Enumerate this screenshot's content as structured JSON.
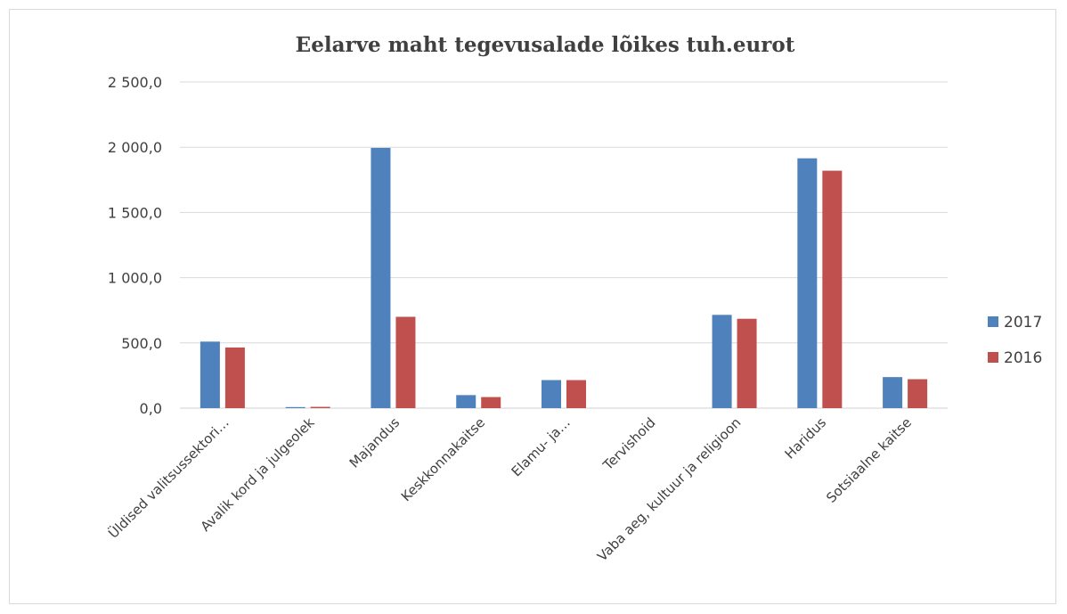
{
  "chart_data": {
    "type": "bar",
    "title": "Eelarve maht tegevusalade lõikes tuh.eurot",
    "categories": [
      "Üldised valitsussektori…",
      "Avalik kord ja julgeolek",
      "Majandus",
      "Keskkonnakaitse",
      "Elamu- ja…",
      "Tervishoid",
      "Vaba aeg, kultuur ja religioon",
      "Haridus",
      "Sotsiaalne kaitse"
    ],
    "series": [
      {
        "name": "2017",
        "color": "#4f81bd",
        "values": [
          510,
          8,
          1995,
          100,
          215,
          0,
          715,
          1915,
          238
        ]
      },
      {
        "name": "2016",
        "color": "#c0504d",
        "values": [
          465,
          10,
          700,
          85,
          215,
          0,
          685,
          1820,
          222
        ]
      }
    ],
    "ylim": [
      0,
      2500
    ],
    "yticks": [
      0,
      500,
      1000,
      1500,
      2000,
      2500
    ],
    "ytick_labels": [
      "0,0",
      "500,0",
      "1 000,0",
      "1 500,0",
      "2 000,0",
      "2 500,0"
    ],
    "grid": true,
    "legend_position": "right",
    "xlabel": "",
    "ylabel": ""
  }
}
